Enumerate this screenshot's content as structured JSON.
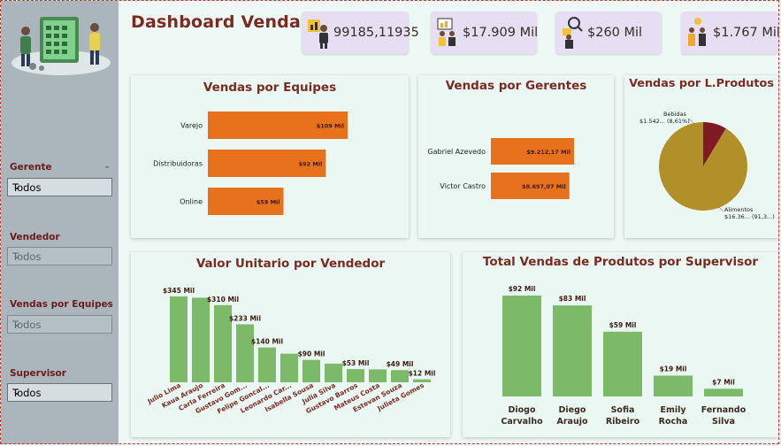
{
  "header": {
    "title": "Dashboard Vendas"
  },
  "kpis": [
    {
      "value": "99185,11935",
      "icon": "person-with-chart-icon"
    },
    {
      "value": "$17.909 Mil",
      "icon": "team-presentation-icon"
    },
    {
      "value": "$260 Mil",
      "icon": "analyst-magnifier-icon"
    },
    {
      "value": "$1.767 Mil",
      "icon": "people-with-money-icon"
    }
  ],
  "filters": [
    {
      "label": "Gerente",
      "value": "Todos",
      "active": true
    },
    {
      "label": "Vendedor",
      "value": "Todos",
      "active": false
    },
    {
      "label": "Vendas por Equipes",
      "value": "Todos",
      "active": false
    },
    {
      "label": "Supervisor",
      "value": "Todos",
      "active": true
    }
  ],
  "colors": {
    "orange": "#e8711c",
    "green": "#7cba6a",
    "olive": "#b1902a",
    "maroon": "#7e1a23",
    "title": "#7b2a22"
  },
  "chart_data": [
    {
      "type": "bar",
      "orientation": "horizontal",
      "title": "Vendas por Equipes",
      "categories": [
        "Varejo",
        "Distribuidoras",
        "Online"
      ],
      "values": [
        109,
        92,
        59
      ],
      "labels": [
        "$109 Mil",
        "$92 Mil",
        "$59 Mil"
      ],
      "xlim": [
        0,
        109
      ],
      "grid": false
    },
    {
      "type": "bar",
      "orientation": "horizontal",
      "title": "Vendas por Gerentes",
      "categories": [
        "Gabriel Azevedo",
        "Victor Castro"
      ],
      "values": [
        9212.17,
        8697.07
      ],
      "labels": [
        "$9.212,17 Mil",
        "$8.697,07 Mil"
      ],
      "xlim": [
        0,
        9212.17
      ],
      "grid": false
    },
    {
      "type": "pie",
      "title": "Vendas por L.Produtos",
      "slices": [
        {
          "name": "Bebidas",
          "percent": 8.61,
          "label": "$1.542... (8,61%)"
        },
        {
          "name": "Alimentos",
          "percent": 91.39,
          "label": "$16.36... (91,3...)"
        }
      ]
    },
    {
      "type": "bar",
      "title": "Valor Unitario por Vendedor",
      "categories": [
        "Julio Lima",
        "Kaua Araujo",
        "Carla Ferreira",
        "Gustavo Gom...",
        "Felipe Goncal...",
        "Leonardo Car...",
        "Isabella Sousa",
        "Julia Silva",
        "Gustavo Barros",
        "Mateus Costa",
        "Estevan Souza",
        "Julieta Gomes"
      ],
      "values": [
        345,
        340,
        310,
        233,
        140,
        115,
        90,
        75,
        53,
        52,
        49,
        12
      ],
      "labels": [
        "$345 Mil",
        "",
        "$310 Mil",
        "$233 Mil",
        "$140 Mil",
        "",
        "$90 Mil",
        "",
        "$53 Mil",
        "",
        "$49 Mil",
        "$12 Mil"
      ],
      "ylim": [
        0,
        345
      ],
      "grid": false
    },
    {
      "type": "bar",
      "title": "Total Vendas de Produtos por Supervisor",
      "categories": [
        "Diogo Carvalho",
        "Diego Araujo",
        "Sofia Ribeiro",
        "Emily Rocha",
        "Fernando Silva"
      ],
      "values": [
        92,
        83,
        59,
        19,
        7
      ],
      "labels": [
        "$92 Mil",
        "$83 Mil",
        "$59 Mil",
        "$19 Mil",
        "$7 Mil"
      ],
      "ylim": [
        0,
        92
      ],
      "grid": false
    }
  ]
}
